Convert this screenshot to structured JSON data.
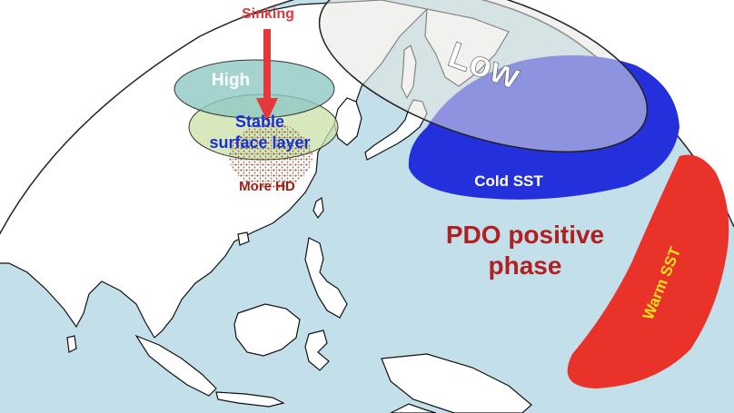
{
  "labels": {
    "sinking": "Sinking",
    "high": "High",
    "stable_surface_layer_line1": "Stable",
    "stable_surface_layer_line2": "surface layer",
    "more_hd": "More HD",
    "low": "Low",
    "cold_sst": "Cold SST",
    "pdo_line1": "PDO positive",
    "pdo_line2": "phase",
    "warm_sst": "Warm SST"
  },
  "colors": {
    "ocean": "#c3dfe9",
    "land": "#ffffff",
    "coast": "#111111",
    "high_fill": "#8fc9c4",
    "stable_fill": "#c9e0a6",
    "sinking_arrow": "#e3383c",
    "low_fill": "#e6e6e2",
    "cold_sst": "#2430dc",
    "warm_sst": "#e8322a",
    "pdo_text": "#b02020",
    "stable_text": "#1a2fd6",
    "more_hd_text": "#9c1d12",
    "warm_sst_text": "#f5e21b"
  }
}
